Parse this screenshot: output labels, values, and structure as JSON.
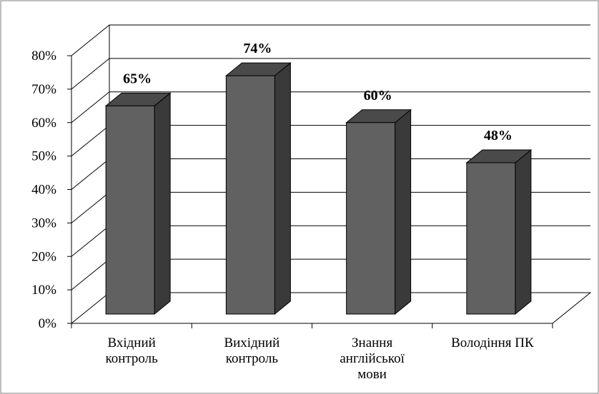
{
  "chart_data": {
    "type": "bar",
    "style": "3d-column",
    "categories": [
      [
        "Вхідний",
        "контроль"
      ],
      [
        "Вихідний",
        "контроль"
      ],
      [
        "Знання",
        "англійської",
        "мови"
      ],
      [
        "Володіння ПК"
      ]
    ],
    "values": [
      65,
      74,
      60,
      48
    ],
    "data_labels": [
      "65%",
      "74%",
      "60%",
      "48%"
    ],
    "ylim": [
      0,
      80
    ],
    "yticks": [
      "0%",
      "10%",
      "20%",
      "30%",
      "40%",
      "50%",
      "60%",
      "70%",
      "80%"
    ],
    "title": "",
    "xlabel": "",
    "ylabel": "",
    "grid": true,
    "legend": false,
    "colors": {
      "bar_front": "#616161",
      "bar_side": "#3a3a3a",
      "bar_top": "#4a4a4a",
      "grid": "#000000",
      "frame": "#7f7f7f"
    }
  }
}
